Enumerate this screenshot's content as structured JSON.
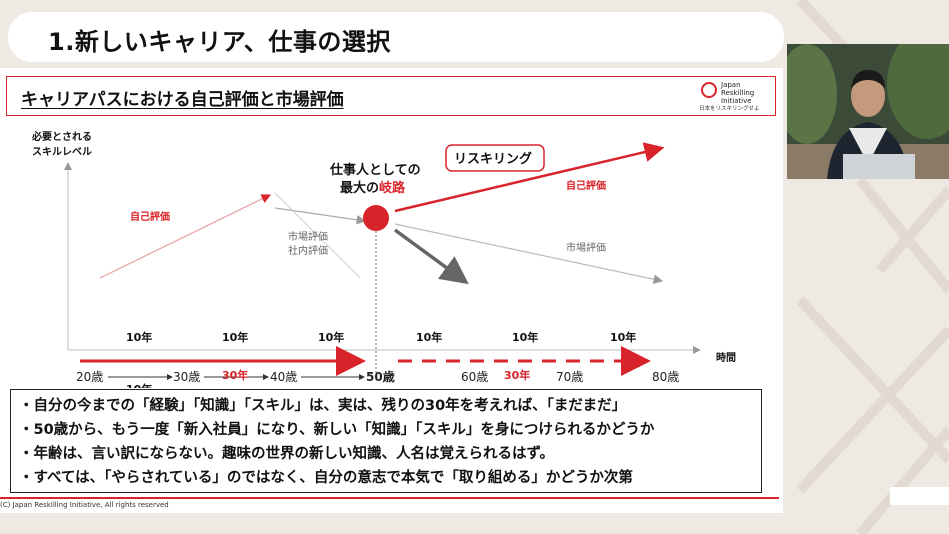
{
  "header": {
    "title": "1.新しいキャリア、仕事の選択"
  },
  "slide": {
    "heading": "キャリアパスにおける自己評価と市場評価",
    "logo": {
      "line1": "Japan",
      "line2": "Reskilling",
      "line3": "Initiative",
      "tagline": "日本をリスキリングせよ"
    }
  },
  "chart": {
    "y_axis_label_line1": "必要とされる",
    "y_axis_label_line2": "スキルレベル",
    "x_axis_label": "時間",
    "label_self_eval_left": "自己評価",
    "label_market_eval_mid_line1": "市場評価",
    "label_market_eval_mid_line2": "社内評価",
    "crossroad_line1": "仕事人としての",
    "crossroad_line2_prefix": "最大の",
    "crossroad_line2_highlight": "岐路",
    "reskilling_label": "リスキリング",
    "label_self_eval_right": "自己評価",
    "label_market_eval_right": "市場評価",
    "ages": [
      "20歳",
      "30歳",
      "40歳",
      "50歳",
      "60歳",
      "70歳",
      "80歳"
    ],
    "interval_label": "10年",
    "span_label_solid": "30年",
    "span_label_dashed": "30年",
    "colors": {
      "accent": "#d9232a",
      "gray": "#999999",
      "dark": "#111111"
    }
  },
  "bullets": [
    "・自分の今までの「経験」「知識」「スキル」は、実は、残りの30年を考えれば、「まだまだ」",
    "・50歳から、もう一度「新入社員」になり、新しい「知識」「スキル」を身につけられるかどうか",
    "・年齢は、言い訳にならない。趣味の世界の新しい知識、人名は覚えられるはず。",
    "・すべては、「やらされている」のではなく、自分の意志で本気で「取り組める」かどうか次第"
  ],
  "footer": {
    "copyright": "(C) Japan Reskilling Initiative, All rights reserved"
  }
}
